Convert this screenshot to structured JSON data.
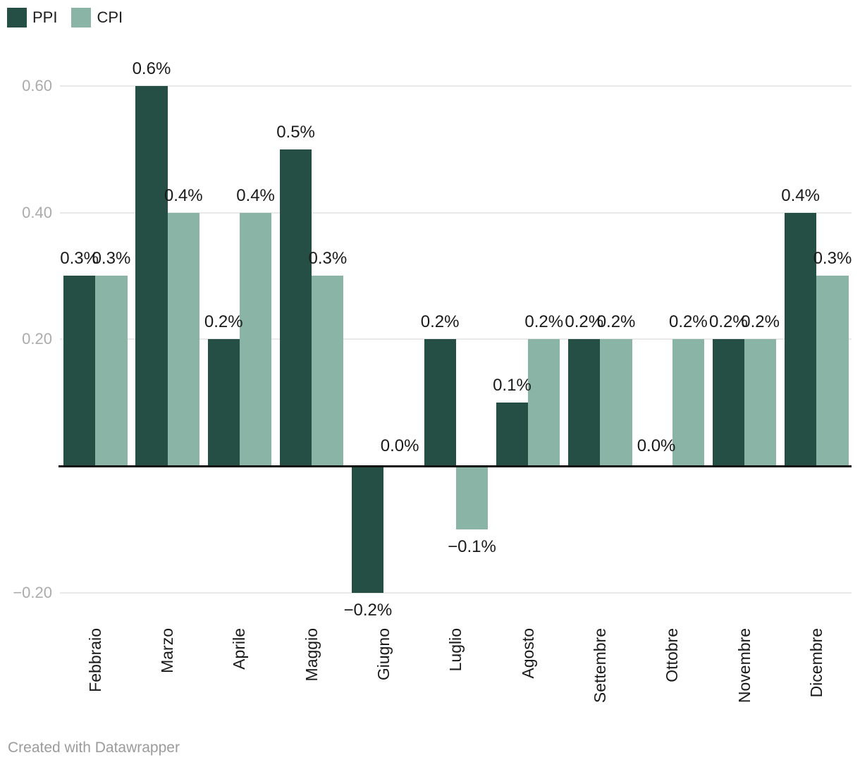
{
  "footer": {
    "text": "Created with Datawrapper"
  },
  "colors": {
    "ppi": "#254e44",
    "cpi": "#8ab4a5",
    "gridline": "#e9e9e9",
    "zero_line": "#131313",
    "tick_text": "#ababab",
    "value_label_text": "#1a1a1a",
    "axis_label_text": "#1a1a1a",
    "footer_text": "#9b9b9b",
    "background": "#ffffff"
  },
  "chart_data": {
    "type": "bar",
    "title": "",
    "xlabel": "",
    "ylabel": "",
    "categories": [
      "Febbraio",
      "Marzo",
      "Aprile",
      "Maggio",
      "Giugno",
      "Luglio",
      "Agosto",
      "Settembre",
      "Ottobre",
      "Novembre",
      "Dicembre"
    ],
    "series": [
      {
        "name": "PPI",
        "color": "#254e44",
        "values": [
          0.3,
          0.6,
          0.2,
          0.5,
          -0.2,
          0.2,
          0.1,
          0.2,
          0.0,
          0.2,
          0.4
        ],
        "labels": [
          "0.3%",
          "0.6%",
          "0.2%",
          "0.5%",
          "−0.2%",
          "0.2%",
          "0.1%",
          "0.2%",
          "0.0%",
          "0.2%",
          "0.4%"
        ]
      },
      {
        "name": "CPI",
        "color": "#8ab4a5",
        "values": [
          0.3,
          0.4,
          0.4,
          0.3,
          0.0,
          -0.1,
          0.2,
          0.2,
          0.2,
          0.2,
          0.3
        ],
        "labels": [
          "0.3%",
          "0.4%",
          "0.4%",
          "0.3%",
          "0.0%",
          "−0.1%",
          "0.2%",
          "0.2%",
          "0.2%",
          "0.2%",
          "0.3%"
        ]
      }
    ],
    "yticks": [
      {
        "value": 0.6,
        "label": "0.60"
      },
      {
        "value": 0.4,
        "label": "0.40"
      },
      {
        "value": 0.2,
        "label": "0.20"
      },
      {
        "value": -0.2,
        "label": "−0.20"
      }
    ],
    "ylim": [
      -0.25,
      0.65
    ],
    "grid": true,
    "legend_position": "top-left",
    "value_unit": "%"
  }
}
